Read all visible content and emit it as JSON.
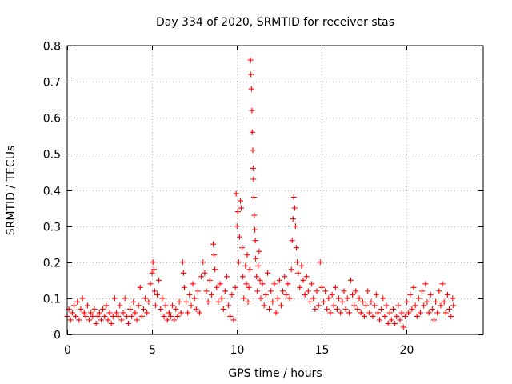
{
  "chart_data": {
    "type": "scatter",
    "title": "Day 334 of 2020, SRMTID for receiver stas",
    "xlabel": "GPS time / hours",
    "ylabel": "SRMTID / TECUs",
    "xlim": [
      0,
      24.5
    ],
    "ylim": [
      0,
      0.8
    ],
    "xticks": [
      0,
      5,
      10,
      15,
      20
    ],
    "xtick_labels": [
      "0",
      "5",
      "10",
      "15",
      "20"
    ],
    "yticks": [
      0,
      0.1,
      0.2,
      0.3,
      0.4,
      0.5,
      0.6,
      0.7,
      0.8
    ],
    "ytick_labels": [
      "0",
      "0.1",
      "0.2",
      "0.3",
      "0.4",
      "0.5",
      "0.6",
      "0.7",
      "0.8"
    ],
    "grid": true,
    "marker": "+",
    "marker_color": "#ff0000",
    "series": [
      {
        "name": "stas",
        "points": [
          [
            0.0,
            0.05
          ],
          [
            0.1,
            0.07
          ],
          [
            0.2,
            0.04
          ],
          [
            0.3,
            0.06
          ],
          [
            0.4,
            0.08
          ],
          [
            0.5,
            0.05
          ],
          [
            0.6,
            0.09
          ],
          [
            0.7,
            0.04
          ],
          [
            0.8,
            0.07
          ],
          [
            0.9,
            0.1
          ],
          [
            1.0,
            0.06
          ],
          [
            1.1,
            0.05
          ],
          [
            1.2,
            0.08
          ],
          [
            1.3,
            0.04
          ],
          [
            1.4,
            0.06
          ],
          [
            1.5,
            0.05
          ],
          [
            1.6,
            0.07
          ],
          [
            1.7,
            0.03
          ],
          [
            1.8,
            0.05
          ],
          [
            1.9,
            0.06
          ],
          [
            2.0,
            0.04
          ],
          [
            2.1,
            0.07
          ],
          [
            2.2,
            0.05
          ],
          [
            2.3,
            0.08
          ],
          [
            2.4,
            0.04
          ],
          [
            2.5,
            0.06
          ],
          [
            2.6,
            0.03
          ],
          [
            2.7,
            0.05
          ],
          [
            2.8,
            0.1
          ],
          [
            2.9,
            0.06
          ],
          [
            3.0,
            0.05
          ],
          [
            3.1,
            0.08
          ],
          [
            3.2,
            0.04
          ],
          [
            3.3,
            0.06
          ],
          [
            3.4,
            0.1
          ],
          [
            3.5,
            0.05
          ],
          [
            3.6,
            0.03
          ],
          [
            3.7,
            0.07
          ],
          [
            3.8,
            0.05
          ],
          [
            3.9,
            0.09
          ],
          [
            4.0,
            0.06
          ],
          [
            4.1,
            0.04
          ],
          [
            4.2,
            0.08
          ],
          [
            4.3,
            0.13
          ],
          [
            4.4,
            0.05
          ],
          [
            4.5,
            0.07
          ],
          [
            4.6,
            0.1
          ],
          [
            4.7,
            0.06
          ],
          [
            4.8,
            0.09
          ],
          [
            4.9,
            0.14
          ],
          [
            5.0,
            0.17
          ],
          [
            5.05,
            0.2
          ],
          [
            5.1,
            0.18
          ],
          [
            5.15,
            0.12
          ],
          [
            5.2,
            0.08
          ],
          [
            5.3,
            0.11
          ],
          [
            5.4,
            0.15
          ],
          [
            5.5,
            0.07
          ],
          [
            5.6,
            0.1
          ],
          [
            5.7,
            0.05
          ],
          [
            5.8,
            0.08
          ],
          [
            5.9,
            0.04
          ],
          [
            6.0,
            0.06
          ],
          [
            6.1,
            0.05
          ],
          [
            6.2,
            0.08
          ],
          [
            6.3,
            0.04
          ],
          [
            6.4,
            0.07
          ],
          [
            6.5,
            0.05
          ],
          [
            6.6,
            0.09
          ],
          [
            6.7,
            0.06
          ],
          [
            6.8,
            0.2
          ],
          [
            6.85,
            0.17
          ],
          [
            6.9,
            0.13
          ],
          [
            7.0,
            0.09
          ],
          [
            7.1,
            0.06
          ],
          [
            7.2,
            0.11
          ],
          [
            7.3,
            0.08
          ],
          [
            7.4,
            0.14
          ],
          [
            7.5,
            0.1
          ],
          [
            7.6,
            0.07
          ],
          [
            7.7,
            0.12
          ],
          [
            7.8,
            0.06
          ],
          [
            7.9,
            0.16
          ],
          [
            8.0,
            0.2
          ],
          [
            8.1,
            0.17
          ],
          [
            8.2,
            0.12
          ],
          [
            8.3,
            0.09
          ],
          [
            8.4,
            0.15
          ],
          [
            8.5,
            0.11
          ],
          [
            8.6,
            0.25
          ],
          [
            8.65,
            0.22
          ],
          [
            8.7,
            0.18
          ],
          [
            8.8,
            0.13
          ],
          [
            8.9,
            0.09
          ],
          [
            9.0,
            0.14
          ],
          [
            9.1,
            0.1
          ],
          [
            9.2,
            0.07
          ],
          [
            9.3,
            0.12
          ],
          [
            9.4,
            0.16
          ],
          [
            9.5,
            0.08
          ],
          [
            9.6,
            0.05
          ],
          [
            9.7,
            0.11
          ],
          [
            9.8,
            0.04
          ],
          [
            9.9,
            0.13
          ],
          [
            9.95,
            0.39
          ],
          [
            10.0,
            0.3
          ],
          [
            10.05,
            0.34
          ],
          [
            10.1,
            0.2
          ],
          [
            10.15,
            0.27
          ],
          [
            10.2,
            0.37
          ],
          [
            10.25,
            0.35
          ],
          [
            10.3,
            0.24
          ],
          [
            10.35,
            0.16
          ],
          [
            10.4,
            0.1
          ],
          [
            10.5,
            0.19
          ],
          [
            10.55,
            0.14
          ],
          [
            10.6,
            0.22
          ],
          [
            10.65,
            0.09
          ],
          [
            10.7,
            0.13
          ],
          [
            10.75,
            0.18
          ],
          [
            10.8,
            0.76
          ],
          [
            10.82,
            0.72
          ],
          [
            10.85,
            0.68
          ],
          [
            10.88,
            0.62
          ],
          [
            10.9,
            0.56
          ],
          [
            10.93,
            0.51
          ],
          [
            10.95,
            0.46
          ],
          [
            10.97,
            0.43
          ],
          [
            11.0,
            0.38
          ],
          [
            11.02,
            0.33
          ],
          [
            11.05,
            0.29
          ],
          [
            11.08,
            0.26
          ],
          [
            11.1,
            0.21
          ],
          [
            11.15,
            0.16
          ],
          [
            11.2,
            0.12
          ],
          [
            11.25,
            0.19
          ],
          [
            11.3,
            0.23
          ],
          [
            11.35,
            0.15
          ],
          [
            11.4,
            0.1
          ],
          [
            11.5,
            0.14
          ],
          [
            11.6,
            0.08
          ],
          [
            11.7,
            0.11
          ],
          [
            11.8,
            0.17
          ],
          [
            11.9,
            0.07
          ],
          [
            12.0,
            0.12
          ],
          [
            12.1,
            0.09
          ],
          [
            12.2,
            0.14
          ],
          [
            12.3,
            0.06
          ],
          [
            12.4,
            0.1
          ],
          [
            12.5,
            0.15
          ],
          [
            12.6,
            0.08
          ],
          [
            12.7,
            0.12
          ],
          [
            12.8,
            0.16
          ],
          [
            12.9,
            0.11
          ],
          [
            13.0,
            0.14
          ],
          [
            13.1,
            0.1
          ],
          [
            13.2,
            0.18
          ],
          [
            13.25,
            0.26
          ],
          [
            13.3,
            0.32
          ],
          [
            13.35,
            0.38
          ],
          [
            13.4,
            0.35
          ],
          [
            13.45,
            0.3
          ],
          [
            13.5,
            0.24
          ],
          [
            13.55,
            0.2
          ],
          [
            13.6,
            0.17
          ],
          [
            13.7,
            0.13
          ],
          [
            13.8,
            0.19
          ],
          [
            13.9,
            0.15
          ],
          [
            14.0,
            0.11
          ],
          [
            14.1,
            0.16
          ],
          [
            14.2,
            0.12
          ],
          [
            14.3,
            0.09
          ],
          [
            14.4,
            0.14
          ],
          [
            14.5,
            0.1
          ],
          [
            14.6,
            0.07
          ],
          [
            14.7,
            0.12
          ],
          [
            14.8,
            0.08
          ],
          [
            14.9,
            0.2
          ],
          [
            15.0,
            0.13
          ],
          [
            15.1,
            0.09
          ],
          [
            15.2,
            0.12
          ],
          [
            15.3,
            0.07
          ],
          [
            15.4,
            0.1
          ],
          [
            15.5,
            0.06
          ],
          [
            15.6,
            0.11
          ],
          [
            15.7,
            0.08
          ],
          [
            15.8,
            0.13
          ],
          [
            15.9,
            0.07
          ],
          [
            16.0,
            0.1
          ],
          [
            16.1,
            0.06
          ],
          [
            16.2,
            0.09
          ],
          [
            16.3,
            0.12
          ],
          [
            16.4,
            0.07
          ],
          [
            16.5,
            0.1
          ],
          [
            16.6,
            0.06
          ],
          [
            16.7,
            0.15
          ],
          [
            16.8,
            0.11
          ],
          [
            16.9,
            0.08
          ],
          [
            17.0,
            0.12
          ],
          [
            17.1,
            0.07
          ],
          [
            17.2,
            0.1
          ],
          [
            17.3,
            0.06
          ],
          [
            17.4,
            0.09
          ],
          [
            17.5,
            0.05
          ],
          [
            17.6,
            0.08
          ],
          [
            17.7,
            0.12
          ],
          [
            17.8,
            0.06
          ],
          [
            17.9,
            0.09
          ],
          [
            18.0,
            0.05
          ],
          [
            18.1,
            0.08
          ],
          [
            18.2,
            0.11
          ],
          [
            18.3,
            0.06
          ],
          [
            18.4,
            0.04
          ],
          [
            18.5,
            0.07
          ],
          [
            18.6,
            0.1
          ],
          [
            18.7,
            0.05
          ],
          [
            18.8,
            0.08
          ],
          [
            18.9,
            0.03
          ],
          [
            19.0,
            0.06
          ],
          [
            19.1,
            0.04
          ],
          [
            19.2,
            0.07
          ],
          [
            19.3,
            0.03
          ],
          [
            19.4,
            0.05
          ],
          [
            19.5,
            0.08
          ],
          [
            19.6,
            0.04
          ],
          [
            19.7,
            0.06
          ],
          [
            19.8,
            0.02
          ],
          [
            19.9,
            0.05
          ],
          [
            20.0,
            0.09
          ],
          [
            20.1,
            0.06
          ],
          [
            20.2,
            0.11
          ],
          [
            20.3,
            0.07
          ],
          [
            20.4,
            0.13
          ],
          [
            20.5,
            0.08
          ],
          [
            20.6,
            0.05
          ],
          [
            20.7,
            0.1
          ],
          [
            20.8,
            0.06
          ],
          [
            20.9,
            0.12
          ],
          [
            21.0,
            0.08
          ],
          [
            21.1,
            0.14
          ],
          [
            21.2,
            0.09
          ],
          [
            21.3,
            0.06
          ],
          [
            21.4,
            0.11
          ],
          [
            21.5,
            0.07
          ],
          [
            21.6,
            0.04
          ],
          [
            21.7,
            0.09
          ],
          [
            21.8,
            0.06
          ],
          [
            21.9,
            0.12
          ],
          [
            22.0,
            0.08
          ],
          [
            22.1,
            0.14
          ],
          [
            22.2,
            0.09
          ],
          [
            22.3,
            0.06
          ],
          [
            22.4,
            0.11
          ],
          [
            22.5,
            0.07
          ],
          [
            22.6,
            0.05
          ],
          [
            22.7,
            0.1
          ],
          [
            22.75,
            0.08
          ]
        ]
      }
    ]
  }
}
